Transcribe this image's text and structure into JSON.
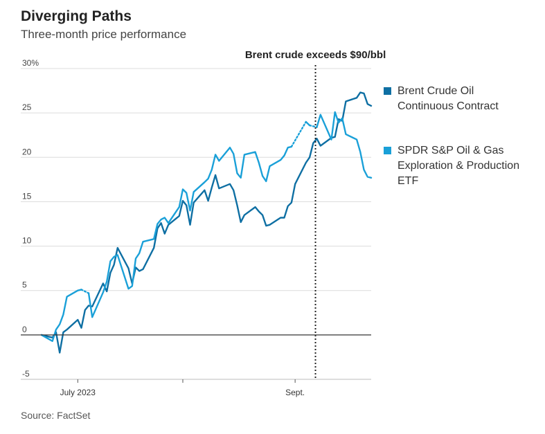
{
  "header": {
    "title": "Diverging Paths",
    "subtitle": "Three-month price performance"
  },
  "footer": {
    "source": "Source: FactSet"
  },
  "colors": {
    "brent": "#0e6fa3",
    "xop": "#1aa0d8",
    "grid": "#dcdcdc",
    "zero": "#333333"
  },
  "chart_data": {
    "type": "line",
    "title": "Diverging Paths",
    "subtitle": "Three-month price performance",
    "ylim": [
      -5,
      30
    ],
    "yticks": [
      -5,
      0,
      5,
      10,
      15,
      20,
      25,
      30
    ],
    "ytick_labels": [
      "-5",
      "0",
      "5",
      "10",
      "15",
      "20",
      "25",
      "30%"
    ],
    "x": [
      "2023-06-23",
      "2023-06-26",
      "2023-06-27",
      "2023-06-28",
      "2023-06-29",
      "2023-06-30",
      "2023-07-03",
      "2023-07-04",
      "2023-07-05",
      "2023-07-06",
      "2023-07-07",
      "2023-07-10",
      "2023-07-11",
      "2023-07-12",
      "2023-07-13",
      "2023-07-14",
      "2023-07-17",
      "2023-07-18",
      "2023-07-19",
      "2023-07-20",
      "2023-07-21",
      "2023-07-24",
      "2023-07-25",
      "2023-07-26",
      "2023-07-27",
      "2023-07-28",
      "2023-07-31",
      "2023-08-01",
      "2023-08-02",
      "2023-08-03",
      "2023-08-04",
      "2023-08-07",
      "2023-08-08",
      "2023-08-09",
      "2023-08-10",
      "2023-08-11",
      "2023-08-14",
      "2023-08-15",
      "2023-08-16",
      "2023-08-17",
      "2023-08-18",
      "2023-08-21",
      "2023-08-22",
      "2023-08-23",
      "2023-08-24",
      "2023-08-25",
      "2023-08-28",
      "2023-08-29",
      "2023-08-30",
      "2023-08-31",
      "2023-09-01",
      "2023-09-04",
      "2023-09-05",
      "2023-09-06",
      "2023-09-07",
      "2023-09-08",
      "2023-09-11",
      "2023-09-12",
      "2023-09-13",
      "2023-09-14",
      "2023-09-15",
      "2023-09-18",
      "2023-09-19",
      "2023-09-20",
      "2023-09-21",
      "2023-09-22"
    ],
    "x_ticks": [
      {
        "date": "2023-07-03",
        "label": "July 2023"
      },
      {
        "date": "2023-08-01",
        "label": ""
      },
      {
        "date": "2023-09-01",
        "label": "Sept."
      }
    ],
    "series": [
      {
        "name": "Brent Crude Oil Continuous Contract",
        "color": "#0e6fa3",
        "values": [
          0,
          -0.3,
          0.3,
          -2,
          0.3,
          0.6,
          1.7,
          0.8,
          2.8,
          3.3,
          3.2,
          5.8,
          4.9,
          7.0,
          7.9,
          9.8,
          7.5,
          5.8,
          7.6,
          7.2,
          7.4,
          9.8,
          12.0,
          12.6,
          11.4,
          12.4,
          13.4,
          15.1,
          14.6,
          12.4,
          14.9,
          16.3,
          15.1,
          16.6,
          18.0,
          16.5,
          17.0,
          16.3,
          14.6,
          12.7,
          13.5,
          14.4,
          13.9,
          13.5,
          12.3,
          12.4,
          13.2,
          13.2,
          14.5,
          14.9,
          17.0,
          19.4,
          20.0,
          21.6,
          22.1,
          21.3,
          22.2,
          22.3,
          24.3,
          24.1,
          26.3,
          26.7,
          27.3,
          27.2,
          26.0,
          25.8
        ]
      },
      {
        "name": "SPDR S&P Oil & Gas Exploration & Production ETF",
        "color": "#1aa0d8",
        "values": [
          0,
          -0.7,
          0.6,
          1.2,
          2.3,
          4.3,
          5.0,
          5.1,
          null,
          4.7,
          2.0,
          4.8,
          6.0,
          8.3,
          8.8,
          9.0,
          5.2,
          5.5,
          8.6,
          9.2,
          10.5,
          10.8,
          12.5,
          13.0,
          13.2,
          12.6,
          14.4,
          16.4,
          16.0,
          14.0,
          16.1,
          17.2,
          17.6,
          18.6,
          20.3,
          19.6,
          21.1,
          20.4,
          18.2,
          17.7,
          20.3,
          20.6,
          19.4,
          17.9,
          17.3,
          19.0,
          19.7,
          20.2,
          21.1,
          21.2,
          null,
          24.0,
          23.6,
          null,
          23.4,
          24.8,
          22.0,
          25.1,
          23.9,
          24.4,
          22.6,
          22.0,
          20.6,
          18.6,
          17.8,
          17.7
        ]
      }
    ],
    "annotation": {
      "date": "2023-09-07",
      "text": "Brent crude exceeds $90/bbl"
    },
    "grid": true,
    "legend_position": "right"
  },
  "legend": [
    {
      "line1": "Brent Crude Oil",
      "line2": "Continuous Contract",
      "line3": ""
    },
    {
      "line1": "SPDR S&P Oil & Gas",
      "line2": "Exploration & Production",
      "line3": "ETF"
    }
  ]
}
